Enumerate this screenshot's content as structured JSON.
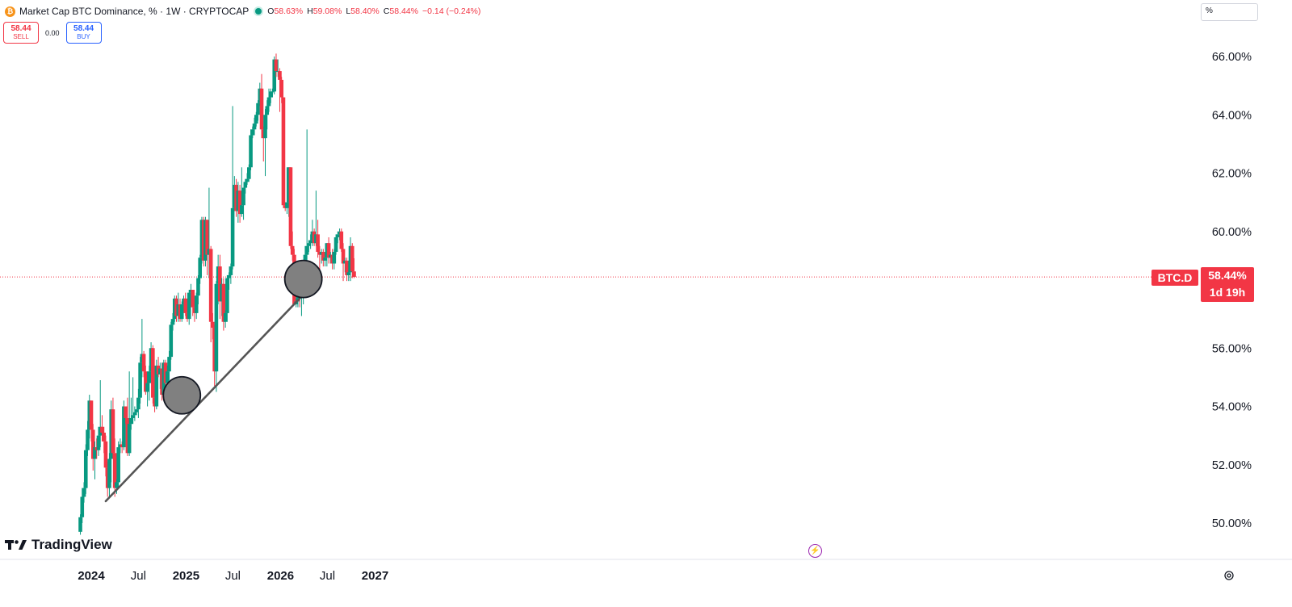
{
  "header": {
    "symbol_icon": "bitcoin-icon",
    "title": "Market Cap BTC Dominance, % · 1W · CRYPTOCAP",
    "open_label": "O",
    "open": "58.63%",
    "high_label": "H",
    "high": "59.08%",
    "low_label": "L",
    "low": "58.40%",
    "close_label": "C",
    "close": "58.44%",
    "change": "−0.14 (−0.24%)"
  },
  "trade": {
    "sell_price": "58.44",
    "sell_label": "SELL",
    "spread": "0.00",
    "buy_price": "58.44",
    "buy_label": "BUY"
  },
  "scale_mode": "%",
  "price_tag": {
    "symbol": "BTC.D",
    "price": "58.44%",
    "countdown": "1d 19h"
  },
  "branding": {
    "logo_text": "TradingView"
  },
  "colors": {
    "up": "#089981",
    "down": "#f23645",
    "trendline": "#555555",
    "marker": "#808080"
  },
  "chart_data": {
    "type": "candlestick",
    "title": "Market Cap BTC Dominance, %",
    "interval": "1W",
    "yaxis": {
      "range": [
        49.0,
        67.6
      ],
      "ticks": [
        50,
        52,
        54,
        56,
        58,
        60,
        62,
        64,
        66
      ],
      "tick_labels": [
        "50.00%",
        "52.00%",
        "54.00%",
        "56.00%",
        "58.00%",
        "60.00%",
        "62.00%",
        "64.00%",
        "66.00%"
      ]
    },
    "xaxis": {
      "start": "2023-11-20",
      "end": "2027-04-12",
      "tick_labels": [
        {
          "date": "2024-01-01",
          "label": "2024",
          "bold": true
        },
        {
          "date": "2024-07-01",
          "label": "Jul",
          "bold": false
        },
        {
          "date": "2025-01-01",
          "label": "2025",
          "bold": true
        },
        {
          "date": "2025-07-01",
          "label": "Jul",
          "bold": false
        },
        {
          "date": "2026-01-01",
          "label": "2026",
          "bold": true
        },
        {
          "date": "2026-07-01",
          "label": "Jul",
          "bold": false
        },
        {
          "date": "2027-01-01",
          "label": "2027",
          "bold": true
        }
      ]
    },
    "first_candle_date": "2023-11-20",
    "ohlc": [
      [
        49.7,
        50.3,
        49.6,
        50.2
      ],
      [
        50.2,
        51.2,
        50.0,
        50.9
      ],
      [
        50.9,
        51.4,
        50.7,
        51.2
      ],
      [
        51.2,
        52.7,
        51.0,
        52.5
      ],
      [
        52.5,
        53.5,
        52.3,
        53.2
      ],
      [
        53.2,
        54.4,
        52.9,
        54.2
      ],
      [
        54.2,
        54.2,
        52.8,
        53.2
      ],
      [
        53.2,
        53.4,
        51.8,
        52.2
      ],
      [
        52.2,
        52.8,
        51.5,
        52.6
      ],
      [
        52.6,
        52.9,
        52.2,
        52.5
      ],
      [
        52.5,
        53.3,
        52.3,
        53.0
      ],
      [
        53.0,
        54.9,
        52.6,
        53.3
      ],
      [
        53.3,
        53.7,
        52.8,
        53.1
      ],
      [
        53.1,
        53.3,
        52.4,
        52.8
      ],
      [
        52.8,
        53.0,
        51.6,
        51.9
      ],
      [
        51.9,
        52.1,
        50.9,
        51.2
      ],
      [
        51.2,
        52.4,
        50.9,
        52.2
      ],
      [
        52.2,
        54.2,
        51.4,
        53.9
      ],
      [
        53.9,
        54.3,
        52.2,
        52.4
      ],
      [
        52.4,
        52.9,
        50.9,
        51.2
      ],
      [
        51.2,
        51.5,
        51.0,
        51.4
      ],
      [
        51.4,
        52.8,
        51.2,
        52.6
      ],
      [
        52.6,
        52.9,
        52.4,
        52.7
      ],
      [
        52.7,
        52.8,
        52.4,
        52.6
      ],
      [
        52.6,
        54.2,
        52.5,
        54.0
      ],
      [
        54.0,
        54.0,
        53.4,
        53.6
      ],
      [
        53.6,
        54.3,
        52.3,
        52.4
      ],
      [
        52.4,
        55.2,
        52.3,
        53.4
      ],
      [
        53.4,
        54.3,
        53.2,
        53.6
      ],
      [
        53.6,
        55.0,
        53.4,
        53.7
      ],
      [
        53.7,
        54.0,
        53.5,
        53.8
      ],
      [
        53.8,
        53.9,
        53.7,
        53.9
      ],
      [
        53.9,
        54.6,
        53.6,
        54.3
      ],
      [
        54.3,
        55.7,
        54.1,
        55.5
      ],
      [
        55.5,
        57.0,
        55.0,
        55.8
      ],
      [
        55.8,
        55.9,
        55.0,
        55.2
      ],
      [
        55.2,
        55.4,
        54.4,
        54.5
      ],
      [
        54.5,
        55.2,
        54.0,
        54.8
      ],
      [
        54.8,
        55.4,
        54.2,
        55.2
      ],
      [
        55.2,
        56.2,
        55.0,
        56.0
      ],
      [
        56.0,
        56.1,
        54.1,
        54.3
      ],
      [
        54.3,
        54.7,
        53.8,
        54.0
      ],
      [
        54.0,
        55.6,
        53.9,
        55.4
      ],
      [
        55.4,
        55.7,
        55.0,
        55.1
      ],
      [
        55.1,
        55.5,
        54.6,
        55.3
      ],
      [
        55.3,
        55.5,
        54.2,
        54.4
      ],
      [
        54.4,
        55.6,
        54.2,
        55.5
      ],
      [
        55.5,
        55.6,
        54.4,
        54.8
      ],
      [
        54.8,
        55.4,
        54.6,
        55.2
      ],
      [
        55.2,
        55.9,
        54.9,
        55.7
      ],
      [
        55.7,
        56.9,
        55.6,
        56.8
      ],
      [
        56.8,
        57.2,
        56.6,
        57.0
      ],
      [
        57.0,
        57.8,
        56.9,
        57.7
      ],
      [
        57.7,
        57.8,
        56.9,
        57.1
      ],
      [
        57.1,
        57.9,
        56.9,
        57.5
      ],
      [
        57.5,
        57.7,
        56.9,
        57.0
      ],
      [
        57.0,
        57.6,
        56.9,
        57.5
      ],
      [
        57.5,
        57.8,
        57.3,
        57.7
      ],
      [
        57.7,
        57.9,
        57.1,
        57.2
      ],
      [
        57.2,
        57.3,
        56.9,
        57.0
      ],
      [
        57.0,
        58.0,
        56.8,
        57.9
      ],
      [
        57.9,
        58.2,
        57.7,
        58.0
      ],
      [
        58.0,
        58.0,
        57.1,
        57.4
      ],
      [
        57.4,
        57.6,
        56.9,
        57.2
      ],
      [
        57.2,
        57.9,
        57.0,
        57.8
      ],
      [
        57.8,
        58.5,
        57.5,
        58.4
      ],
      [
        58.4,
        59.2,
        58.2,
        59.1
      ],
      [
        59.1,
        60.5,
        58.9,
        60.4
      ],
      [
        60.4,
        60.5,
        58.8,
        59.0
      ],
      [
        59.0,
        60.5,
        58.8,
        60.4
      ],
      [
        60.4,
        60.4,
        58.5,
        59.2
      ],
      [
        59.2,
        61.5,
        58.4,
        59.4
      ],
      [
        59.4,
        59.5,
        56.2,
        56.9
      ],
      [
        56.9,
        57.2,
        56.3,
        56.7
      ],
      [
        56.7,
        56.8,
        54.7,
        55.2
      ],
      [
        55.2,
        58.3,
        54.5,
        58.2
      ],
      [
        58.2,
        59.2,
        57.5,
        58.8
      ],
      [
        58.8,
        59.2,
        57.0,
        57.6
      ],
      [
        57.6,
        58.4,
        57.1,
        58.2
      ],
      [
        58.2,
        58.4,
        56.6,
        56.9
      ],
      [
        56.9,
        57.3,
        56.7,
        57.2
      ],
      [
        57.2,
        58.5,
        56.9,
        58.4
      ],
      [
        58.4,
        58.6,
        58.0,
        58.5
      ],
      [
        58.5,
        58.9,
        58.2,
        58.8
      ],
      [
        58.8,
        64.3,
        58.7,
        60.8
      ],
      [
        60.8,
        61.9,
        60.7,
        61.6
      ],
      [
        61.6,
        61.8,
        60.5,
        60.7
      ],
      [
        60.7,
        61.7,
        60.3,
        61.4
      ],
      [
        61.4,
        61.6,
        60.3,
        60.6
      ],
      [
        60.6,
        62.2,
        60.5,
        60.9
      ],
      [
        60.9,
        61.5,
        60.4,
        61.5
      ],
      [
        61.5,
        61.8,
        61.3,
        61.7
      ],
      [
        61.7,
        62.0,
        61.6,
        61.8
      ],
      [
        61.8,
        62.3,
        61.7,
        62.2
      ],
      [
        62.2,
        63.5,
        62.1,
        63.3
      ],
      [
        63.3,
        63.6,
        63.2,
        63.5
      ],
      [
        63.5,
        63.9,
        63.3,
        63.7
      ],
      [
        63.7,
        64.1,
        63.6,
        64.0
      ],
      [
        64.0,
        64.5,
        63.8,
        64.4
      ],
      [
        64.4,
        65.1,
        64.3,
        64.9
      ],
      [
        64.9,
        65.4,
        63.2,
        63.5
      ],
      [
        63.5,
        63.6,
        62.4,
        63.2
      ],
      [
        63.2,
        64.2,
        61.9,
        64.0
      ],
      [
        64.0,
        64.5,
        63.5,
        64.3
      ],
      [
        64.3,
        64.9,
        64.1,
        64.6
      ],
      [
        64.6,
        64.9,
        64.4,
        64.8
      ],
      [
        64.8,
        64.9,
        64.6,
        64.8
      ],
      [
        64.8,
        66.0,
        64.7,
        65.9
      ],
      [
        65.9,
        66.1,
        65.3,
        65.5
      ],
      [
        65.5,
        65.9,
        65.3,
        65.5
      ],
      [
        65.5,
        65.6,
        64.1,
        65.2
      ],
      [
        65.2,
        65.3,
        64.4,
        64.6
      ],
      [
        64.6,
        64.6,
        60.8,
        60.9
      ],
      [
        60.9,
        61.0,
        60.7,
        60.8
      ],
      [
        60.8,
        62.2,
        60.6,
        61.0
      ],
      [
        61.0,
        62.2,
        60.5,
        62.2
      ],
      [
        62.2,
        62.2,
        59.4,
        59.5
      ],
      [
        59.5,
        60.0,
        59.0,
        59.2
      ],
      [
        59.2,
        59.4,
        57.5,
        57.5
      ],
      [
        57.5,
        57.7,
        57.4,
        57.6
      ],
      [
        57.6,
        58.2,
        57.4,
        58.2
      ],
      [
        58.2,
        58.2,
        57.4,
        57.8
      ],
      [
        57.8,
        58.6,
        57.1,
        57.8
      ],
      [
        57.8,
        58.2,
        57.5,
        58.2
      ],
      [
        58.2,
        59.5,
        57.9,
        59.2
      ],
      [
        59.2,
        63.5,
        58.8,
        59.5
      ],
      [
        59.5,
        59.7,
        59.3,
        59.6
      ],
      [
        59.6,
        59.9,
        59.4,
        59.7
      ],
      [
        59.7,
        60.4,
        59.5,
        60.0
      ],
      [
        60.0,
        60.1,
        59.5,
        59.6
      ],
      [
        59.6,
        61.4,
        59.5,
        59.9
      ],
      [
        59.9,
        60.4,
        59.1,
        59.3
      ],
      [
        59.3,
        59.5,
        58.3,
        59.2
      ],
      [
        59.2,
        59.4,
        58.9,
        59.3
      ],
      [
        59.3,
        59.4,
        58.8,
        59.0
      ],
      [
        59.0,
        59.3,
        58.8,
        59.1
      ],
      [
        59.1,
        59.6,
        58.8,
        59.6
      ],
      [
        59.6,
        59.8,
        58.9,
        59.1
      ],
      [
        59.1,
        59.3,
        58.9,
        59.2
      ],
      [
        59.2,
        59.4,
        58.7,
        58.9
      ],
      [
        58.9,
        59.4,
        58.7,
        59.3
      ],
      [
        59.3,
        59.9,
        59.2,
        59.8
      ],
      [
        59.8,
        60.0,
        59.6,
        59.9
      ],
      [
        59.9,
        60.1,
        59.7,
        60.0
      ],
      [
        60.0,
        60.1,
        59.3,
        59.4
      ],
      [
        59.4,
        59.6,
        58.3,
        58.9
      ],
      [
        58.9,
        59.1,
        58.6,
        59.0
      ],
      [
        59.0,
        59.1,
        58.3,
        58.5
      ],
      [
        58.5,
        59.0,
        58.3,
        58.6
      ],
      [
        58.6,
        59.8,
        58.3,
        59.5
      ],
      [
        59.5,
        59.6,
        58.4,
        58.63
      ],
      [
        58.63,
        59.08,
        58.4,
        58.44
      ]
    ],
    "current_price": 58.44,
    "annotations": [
      {
        "type": "trendline",
        "from": {
          "date": "2024-02-26",
          "value": 50.75
        },
        "to": {
          "date": "2026-05-04",
          "value": 58.16
        }
      },
      {
        "type": "circle",
        "center": {
          "date": "2024-12-16",
          "value": 54.38
        }
      },
      {
        "type": "circle",
        "center": {
          "date": "2026-03-30",
          "value": 58.37
        }
      }
    ]
  }
}
